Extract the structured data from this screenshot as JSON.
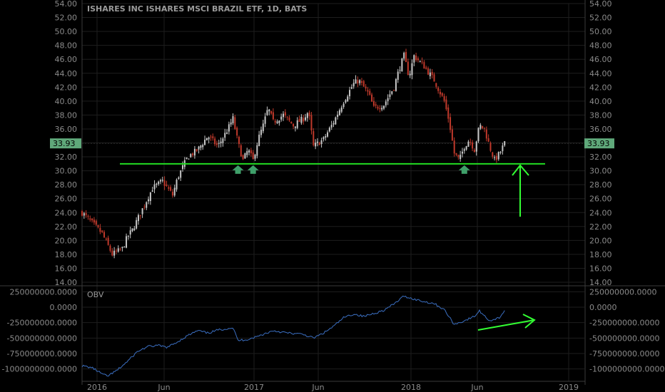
{
  "chart_data": [
    {
      "type": "candlestick",
      "title": "ISHARES INC ISHARES MSCI BRAZIL ETF, 1D, BATS",
      "y_ticks": [
        "54.00",
        "52.00",
        "50.00",
        "48.00",
        "46.00",
        "44.00",
        "42.00",
        "40.00",
        "38.00",
        "36.00",
        "34.00",
        "32.00",
        "30.00",
        "28.00",
        "26.00",
        "24.00",
        "22.00",
        "20.00",
        "18.00",
        "16.00",
        "14.00"
      ],
      "ylim": [
        14,
        54
      ],
      "x_ticks": [
        "2016",
        "Jun",
        "2017",
        "Jun",
        "2018",
        "Jun",
        "2019"
      ],
      "last_price": "33.93",
      "last_price_value": 33.93,
      "series": [
        {
          "close_points": [
            {
              "x": 0.0,
              "y": 24.0
            },
            {
              "x": 0.02,
              "y": 22.5
            },
            {
              "x": 0.04,
              "y": 21.0
            },
            {
              "x": 0.05,
              "y": 19.5
            },
            {
              "x": 0.06,
              "y": 18.0
            },
            {
              "x": 0.08,
              "y": 18.8
            },
            {
              "x": 0.09,
              "y": 20.5
            },
            {
              "x": 0.1,
              "y": 21.5
            },
            {
              "x": 0.12,
              "y": 24.5
            },
            {
              "x": 0.14,
              "y": 27.5
            },
            {
              "x": 0.16,
              "y": 28.5
            },
            {
              "x": 0.18,
              "y": 26.5
            },
            {
              "x": 0.19,
              "y": 29.0
            },
            {
              "x": 0.21,
              "y": 32.0
            },
            {
              "x": 0.23,
              "y": 33.0
            },
            {
              "x": 0.25,
              "y": 35.0
            },
            {
              "x": 0.27,
              "y": 33.5
            },
            {
              "x": 0.29,
              "y": 36.0
            },
            {
              "x": 0.3,
              "y": 37.5
            },
            {
              "x": 0.31,
              "y": 34.0
            },
            {
              "x": 0.32,
              "y": 31.5
            },
            {
              "x": 0.33,
              "y": 33.0
            },
            {
              "x": 0.34,
              "y": 31.5
            },
            {
              "x": 0.35,
              "y": 34.5
            },
            {
              "x": 0.36,
              "y": 36.5
            },
            {
              "x": 0.37,
              "y": 39.0
            },
            {
              "x": 0.38,
              "y": 37.0
            },
            {
              "x": 0.4,
              "y": 38.0
            },
            {
              "x": 0.42,
              "y": 36.5
            },
            {
              "x": 0.44,
              "y": 37.5
            },
            {
              "x": 0.45,
              "y": 38.5
            },
            {
              "x": 0.46,
              "y": 33.5
            },
            {
              "x": 0.48,
              "y": 34.5
            },
            {
              "x": 0.5,
              "y": 37.0
            },
            {
              "x": 0.52,
              "y": 40.0
            },
            {
              "x": 0.54,
              "y": 42.5
            },
            {
              "x": 0.55,
              "y": 43.0
            },
            {
              "x": 0.57,
              "y": 41.0
            },
            {
              "x": 0.58,
              "y": 39.0
            },
            {
              "x": 0.6,
              "y": 39.5
            },
            {
              "x": 0.62,
              "y": 42.0
            },
            {
              "x": 0.63,
              "y": 44.5
            },
            {
              "x": 0.64,
              "y": 46.5
            },
            {
              "x": 0.65,
              "y": 43.5
            },
            {
              "x": 0.66,
              "y": 46.5
            },
            {
              "x": 0.68,
              "y": 45.0
            },
            {
              "x": 0.7,
              "y": 43.0
            },
            {
              "x": 0.72,
              "y": 40.0
            },
            {
              "x": 0.73,
              "y": 37.0
            },
            {
              "x": 0.74,
              "y": 32.5
            },
            {
              "x": 0.75,
              "y": 31.5
            },
            {
              "x": 0.76,
              "y": 33.5
            },
            {
              "x": 0.77,
              "y": 34.5
            },
            {
              "x": 0.78,
              "y": 33.0
            },
            {
              "x": 0.79,
              "y": 36.5
            },
            {
              "x": 0.8,
              "y": 36.0
            },
            {
              "x": 0.81,
              "y": 33.5
            },
            {
              "x": 0.82,
              "y": 31.5
            },
            {
              "x": 0.83,
              "y": 32.5
            },
            {
              "x": 0.84,
              "y": 33.93
            }
          ]
        }
      ],
      "support_level": 31.0,
      "support_arrow_markers": [
        0.31,
        0.34,
        0.76
      ]
    },
    {
      "type": "line",
      "title": "OBV",
      "y_ticks": [
        "250000000.0000",
        "0.0000",
        "-250000000.0000",
        "-500000000.0000",
        "-750000000.0000",
        "-1000000000.0000"
      ],
      "ylim": [
        -1200000000,
        300000000
      ],
      "x_ticks": [
        "2016",
        "Jun",
        "2017",
        "Jun",
        "2018",
        "Jun",
        "2019"
      ],
      "series": [
        {
          "points": [
            {
              "x": 0.0,
              "y": -950000000
            },
            {
              "x": 0.02,
              "y": -980000000
            },
            {
              "x": 0.04,
              "y": -1080000000
            },
            {
              "x": 0.05,
              "y": -1120000000
            },
            {
              "x": 0.07,
              "y": -1020000000
            },
            {
              "x": 0.09,
              "y": -880000000
            },
            {
              "x": 0.11,
              "y": -720000000
            },
            {
              "x": 0.13,
              "y": -640000000
            },
            {
              "x": 0.15,
              "y": -620000000
            },
            {
              "x": 0.17,
              "y": -650000000
            },
            {
              "x": 0.19,
              "y": -560000000
            },
            {
              "x": 0.21,
              "y": -460000000
            },
            {
              "x": 0.23,
              "y": -380000000
            },
            {
              "x": 0.25,
              "y": -420000000
            },
            {
              "x": 0.27,
              "y": -370000000
            },
            {
              "x": 0.3,
              "y": -330000000
            },
            {
              "x": 0.31,
              "y": -540000000
            },
            {
              "x": 0.33,
              "y": -520000000
            },
            {
              "x": 0.35,
              "y": -470000000
            },
            {
              "x": 0.38,
              "y": -380000000
            },
            {
              "x": 0.41,
              "y": -420000000
            },
            {
              "x": 0.44,
              "y": -440000000
            },
            {
              "x": 0.46,
              "y": -500000000
            },
            {
              "x": 0.48,
              "y": -420000000
            },
            {
              "x": 0.5,
              "y": -310000000
            },
            {
              "x": 0.52,
              "y": -170000000
            },
            {
              "x": 0.54,
              "y": -110000000
            },
            {
              "x": 0.56,
              "y": -150000000
            },
            {
              "x": 0.58,
              "y": -100000000
            },
            {
              "x": 0.6,
              "y": -50000000
            },
            {
              "x": 0.62,
              "y": 50000000
            },
            {
              "x": 0.64,
              "y": 180000000
            },
            {
              "x": 0.66,
              "y": 130000000
            },
            {
              "x": 0.68,
              "y": 90000000
            },
            {
              "x": 0.7,
              "y": 60000000
            },
            {
              "x": 0.72,
              "y": -40000000
            },
            {
              "x": 0.74,
              "y": -280000000
            },
            {
              "x": 0.76,
              "y": -220000000
            },
            {
              "x": 0.78,
              "y": -150000000
            },
            {
              "x": 0.79,
              "y": -60000000
            },
            {
              "x": 0.81,
              "y": -220000000
            },
            {
              "x": 0.83,
              "y": -170000000
            },
            {
              "x": 0.84,
              "y": -50000000
            }
          ]
        }
      ]
    }
  ],
  "colors": {
    "background": "#000000",
    "grid": "#1e1e1e",
    "axis_text": "#8a8a8a",
    "candle_up": "#c7c7c7",
    "candle_down": "#c0392b",
    "support_line": "#22dd22",
    "arrow_marker": "#3fa06a",
    "annotation_arrow": "#33ff33",
    "price_tag_bg": "#5fa87a",
    "obv_line": "#3b6fc2"
  }
}
